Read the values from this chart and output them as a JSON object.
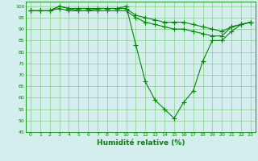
{
  "x": [
    0,
    1,
    2,
    3,
    4,
    5,
    6,
    7,
    8,
    9,
    10,
    11,
    12,
    13,
    14,
    15,
    16,
    17,
    18,
    19,
    20,
    21,
    22,
    23
  ],
  "line1": [
    98,
    98,
    98,
    100,
    99,
    98,
    98,
    99,
    99,
    99,
    100,
    83,
    67,
    59,
    55,
    51,
    58,
    63,
    76,
    85,
    85,
    89,
    92,
    93
  ],
  "line2": [
    98,
    98,
    98,
    99,
    98,
    98,
    98,
    98,
    98,
    98,
    98,
    95,
    93,
    92,
    91,
    90,
    90,
    89,
    88,
    87,
    87,
    91,
    92,
    93
  ],
  "line3": [
    98,
    98,
    98,
    100,
    99,
    99,
    99,
    99,
    99,
    99,
    99,
    96,
    95,
    94,
    93,
    93,
    93,
    92,
    91,
    90,
    89,
    91,
    92,
    93
  ],
  "line_color": "#008800",
  "bg_color": "#d4eeee",
  "grid_color": "#88cc88",
  "xlabel": "Humidité relative (%)",
  "ylim": [
    45,
    102
  ],
  "xlim": [
    -0.5,
    23.5
  ],
  "yticks": [
    45,
    50,
    55,
    60,
    65,
    70,
    75,
    80,
    85,
    90,
    95,
    100
  ],
  "xticks": [
    0,
    1,
    2,
    3,
    4,
    5,
    6,
    7,
    8,
    9,
    10,
    11,
    12,
    13,
    14,
    15,
    16,
    17,
    18,
    19,
    20,
    21,
    22,
    23
  ]
}
